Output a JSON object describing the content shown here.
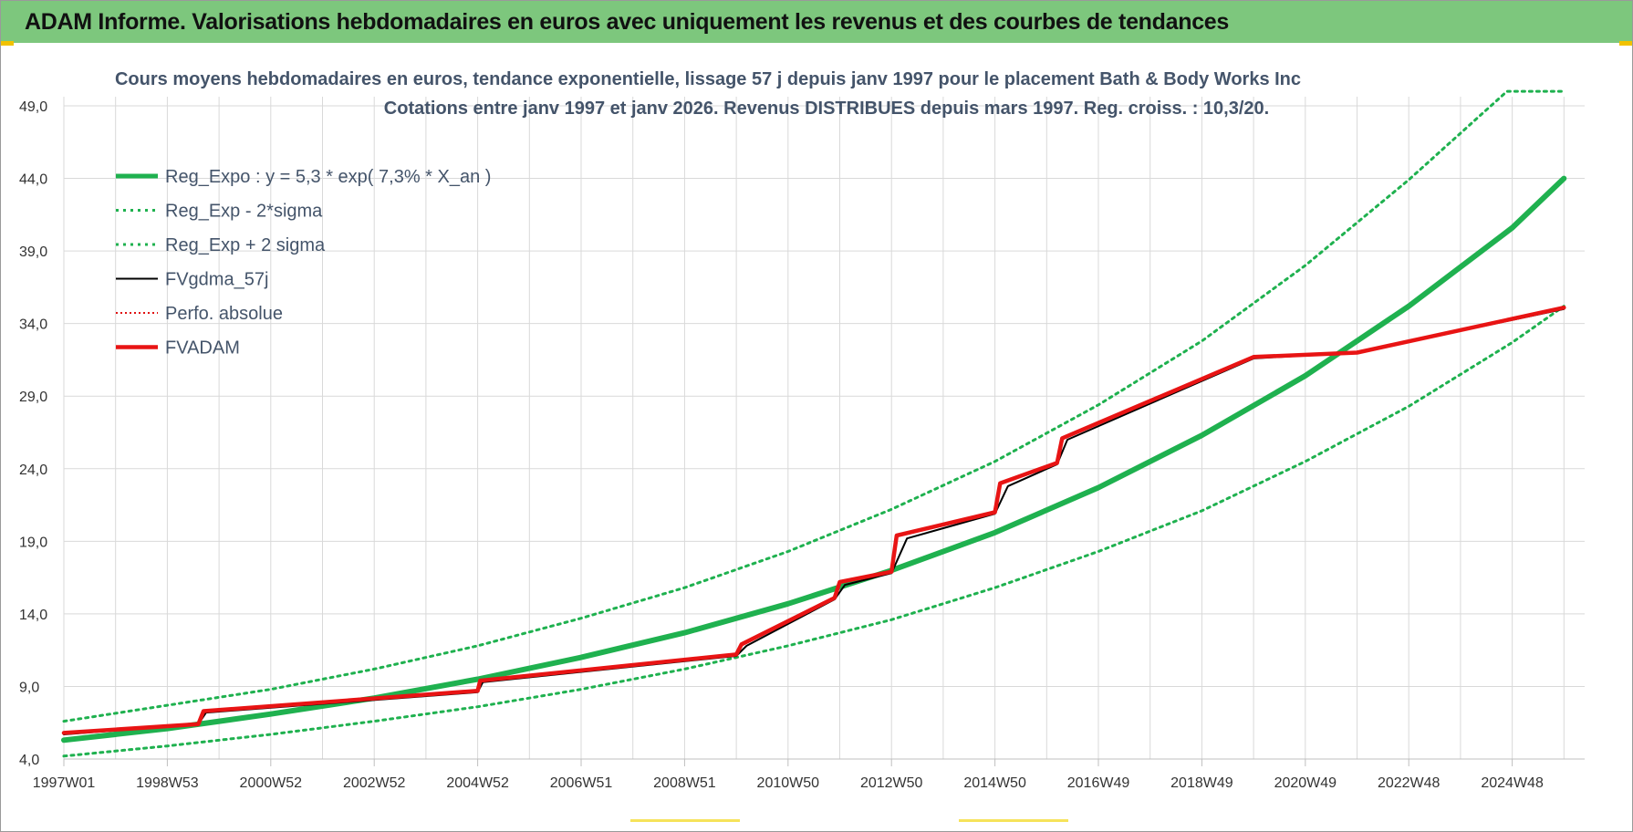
{
  "header": {
    "title": "ADAM Informe. Valorisations hebdomadaires en euros avec uniquement les revenus et des courbes de tendances"
  },
  "colors": {
    "title_bar": "#7dc77d",
    "reg_expo": "#1fb14f",
    "bands": "#1fb14f",
    "fvgdma": "#000000",
    "perfo": "#e01010",
    "fvadam": "#e81414",
    "grid": "#d9d9d9"
  },
  "chart_data": {
    "type": "line",
    "title": "Cours moyens hebdomadaires en euros, tendance exponentielle, lissage 57 j depuis janv 1997  pour le placement Bath & Body Works Inc",
    "subtitle": "Cotations entre janv 1997 et janv 2026. Revenus DISTRIBUES depuis mars 1997. Reg. croiss. : 10,3/20.",
    "xlabel": "",
    "ylabel": "",
    "x_range": [
      "1997W01",
      "2026W01"
    ],
    "ylim": [
      4.0,
      49.0
    ],
    "y_ticks": [
      "4,0",
      "9,0",
      "14,0",
      "19,0",
      "24,0",
      "29,0",
      "34,0",
      "39,0",
      "44,0",
      "49,0"
    ],
    "x_ticks": [
      "1997W01",
      "1998W53",
      "2000W52",
      "2002W52",
      "2004W52",
      "2006W51",
      "2008W51",
      "2010W50",
      "2012W50",
      "2014W50",
      "2016W49",
      "2018W49",
      "2020W49",
      "2022W48",
      "2024W48"
    ],
    "grid": true,
    "legend_position": "top-left",
    "series": [
      {
        "name": "Reg_Expo : y = 5,3 * exp( 7,3% *  X_an )",
        "style": "solid-thick",
        "x": [
          1997,
          1999,
          2001,
          2003,
          2005,
          2007,
          2009,
          2011,
          2013,
          2015,
          2017,
          2019,
          2021,
          2023,
          2025,
          2026
        ],
        "values": [
          5.3,
          6.1,
          7.1,
          8.2,
          9.5,
          11.0,
          12.7,
          14.7,
          17.0,
          19.6,
          22.7,
          26.3,
          30.4,
          35.2,
          40.6,
          44.0
        ]
      },
      {
        "name": "Reg_Exp - 2*sigma",
        "style": "dotted",
        "x": [
          1997,
          1999,
          2001,
          2003,
          2005,
          2007,
          2009,
          2011,
          2013,
          2015,
          2017,
          2019,
          2021,
          2023,
          2025,
          2026
        ],
        "values": [
          4.2,
          4.9,
          5.7,
          6.6,
          7.6,
          8.8,
          10.2,
          11.8,
          13.6,
          15.8,
          18.3,
          21.1,
          24.5,
          28.3,
          32.7,
          35.2
        ]
      },
      {
        "name": "Reg_Exp + 2 sigma",
        "style": "dotted",
        "x": [
          1997,
          1999,
          2001,
          2003,
          2005,
          2007,
          2009,
          2011,
          2013,
          2015,
          2017,
          2019,
          2021,
          2023,
          2024.9,
          2026
        ],
        "values": [
          6.6,
          7.7,
          8.8,
          10.2,
          11.8,
          13.7,
          15.8,
          18.3,
          21.2,
          24.5,
          28.4,
          32.8,
          38.0,
          43.9,
          50.0,
          50.0
        ]
      },
      {
        "name": "FVgdma_57j",
        "style": "solid-thin",
        "x": [
          1997,
          1999.6,
          1999.75,
          2005,
          2005.1,
          2010.0,
          2010.2,
          2011.9,
          2012.1,
          2013.0,
          2013.3,
          2015.0,
          2015.25,
          2016.2,
          2016.4,
          2020.0,
          2022.0,
          2026.0
        ],
        "values": [
          5.7,
          6.4,
          7.2,
          8.6,
          9.3,
          11.1,
          11.8,
          15.0,
          16.0,
          16.8,
          19.2,
          20.9,
          22.8,
          24.3,
          26.0,
          31.6,
          32.0,
          35.0
        ]
      },
      {
        "name": "Perfo. absolue",
        "style": "dotted-thin",
        "x": [
          1997,
          1999.6,
          1999.7,
          2005,
          2005.05,
          2010.0,
          2010.1,
          2011.9,
          2012.0,
          2013.0,
          2013.1,
          2015.0,
          2015.1,
          2016.2,
          2016.3,
          2020.0,
          2022.0,
          2026.0
        ],
        "values": [
          5.8,
          6.4,
          7.3,
          8.7,
          9.4,
          11.2,
          11.9,
          15.1,
          16.2,
          16.9,
          19.4,
          21.0,
          23.0,
          24.4,
          26.1,
          31.7,
          32.0,
          35.1
        ]
      },
      {
        "name": "FVADAM",
        "style": "solid-red-thick",
        "x": [
          1997,
          1999.6,
          1999.7,
          2005,
          2005.05,
          2010.0,
          2010.1,
          2011.9,
          2012.0,
          2013.0,
          2013.1,
          2015.0,
          2015.1,
          2016.2,
          2016.3,
          2020.0,
          2022.0,
          2026.0
        ],
        "values": [
          5.8,
          6.4,
          7.3,
          8.7,
          9.4,
          11.2,
          11.9,
          15.1,
          16.2,
          16.9,
          19.4,
          21.0,
          23.0,
          24.4,
          26.1,
          31.7,
          32.0,
          35.1
        ]
      }
    ]
  }
}
